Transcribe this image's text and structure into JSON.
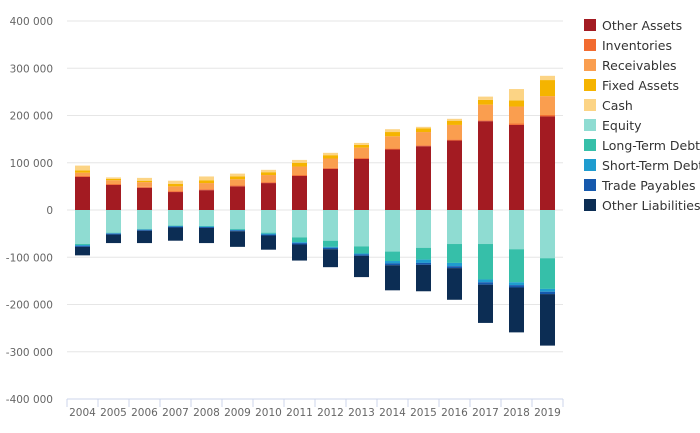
{
  "chart_data": {
    "type": "bar",
    "stacked": true,
    "categories": [
      "2004",
      "2005",
      "2006",
      "2007",
      "2008",
      "2009",
      "2010",
      "2011",
      "2012",
      "2013",
      "2014",
      "2015",
      "2016",
      "2017",
      "2018",
      "2019"
    ],
    "ylim": [
      -400000,
      400000
    ],
    "yticks": [
      -400000,
      -300000,
      -200000,
      -100000,
      0,
      100000,
      200000,
      300000,
      400000
    ],
    "ytick_labels": [
      "-400 000",
      "-300 000",
      "-200 000",
      "-100 000",
      "0",
      "100 000",
      "200 000",
      "300 000",
      "400 000"
    ],
    "grid": true,
    "legend_position": "right",
    "series": [
      {
        "name": "Other Assets",
        "color": "#a31b22",
        "values": [
          70000,
          53000,
          47000,
          38000,
          42000,
          50000,
          57000,
          72000,
          87000,
          108000,
          128000,
          135000,
          147000,
          188000,
          180000,
          198000
        ]
      },
      {
        "name": "Inventories",
        "color": "#f26b30",
        "values": [
          2000,
          2000,
          2000,
          2000,
          2000,
          2000,
          2000,
          2000,
          2000,
          2000,
          2000,
          2000,
          2000,
          2000,
          3000,
          3000
        ]
      },
      {
        "name": "Receivables",
        "color": "#fa9e4f",
        "values": [
          7000,
          8000,
          10000,
          10000,
          13000,
          13000,
          15000,
          18000,
          20000,
          22000,
          26000,
          28000,
          31000,
          33000,
          36000,
          40000
        ]
      },
      {
        "name": "Fixed Assets",
        "color": "#f5b400",
        "values": [
          5000,
          3000,
          3000,
          5000,
          6000,
          6000,
          6000,
          8000,
          7000,
          6000,
          9000,
          8000,
          9000,
          10000,
          13000,
          34000
        ]
      },
      {
        "name": "Cash",
        "color": "#fcd485",
        "values": [
          10000,
          3000,
          6000,
          7000,
          8000,
          6000,
          5000,
          6000,
          5000,
          4000,
          6000,
          3000,
          4000,
          7000,
          24000,
          9000
        ]
      },
      {
        "name": "Equity",
        "color": "#8fdcd2",
        "values": [
          -72000,
          -48000,
          -40000,
          -33000,
          -34000,
          -40000,
          -48000,
          -58000,
          -65000,
          -77000,
          -88000,
          -80000,
          -72000,
          -72000,
          -83000,
          -102000
        ]
      },
      {
        "name": "Long-Term Debt",
        "color": "#36bfa9",
        "values": [
          -2000,
          -1000,
          -1000,
          -1000,
          -1000,
          -2000,
          -2000,
          -10000,
          -13000,
          -15000,
          -20000,
          -25000,
          -40000,
          -75000,
          -70000,
          -65000
        ]
      },
      {
        "name": "Short-Term Debt",
        "color": "#1f9ccf",
        "values": [
          -2000,
          -1000,
          -1000,
          -1000,
          -1000,
          -1000,
          -2000,
          -2000,
          -2000,
          -2000,
          -5000,
          -7000,
          -7000,
          -6000,
          -6000,
          -6000
        ]
      },
      {
        "name": "Trade Payables",
        "color": "#1659ad",
        "values": [
          -2000,
          -2000,
          -2000,
          -2000,
          -2000,
          -2000,
          -2000,
          -3000,
          -3000,
          -3000,
          -4000,
          -4000,
          -4000,
          -5000,
          -5000,
          -5000
        ]
      },
      {
        "name": "Other Liabilities",
        "color": "#0c2d54",
        "values": [
          -18000,
          -18000,
          -26000,
          -28000,
          -32000,
          -33000,
          -30000,
          -34000,
          -38000,
          -45000,
          -53000,
          -56000,
          -67000,
          -81000,
          -95000,
          -109000
        ]
      }
    ]
  }
}
